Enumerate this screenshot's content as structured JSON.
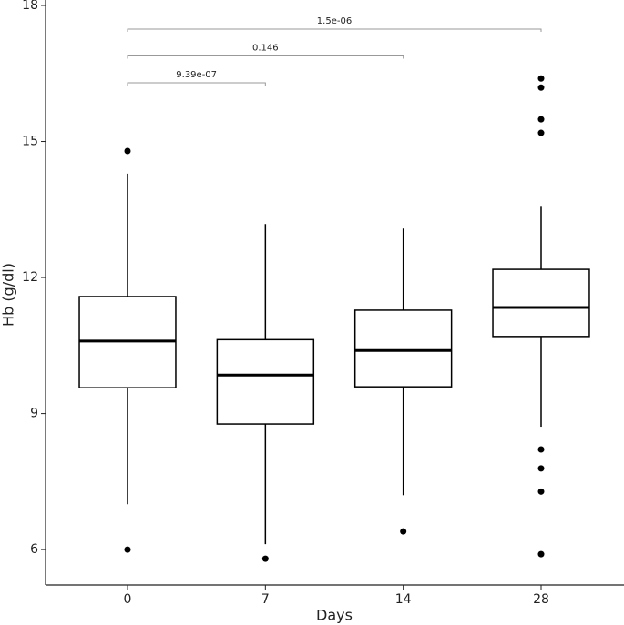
{
  "chart_data": {
    "type": "boxplot",
    "x_label": "Days",
    "y_label": "Hb (g/dl)",
    "categories": [
      "0",
      "7",
      "14",
      "28"
    ],
    "boxes": [
      {
        "whisker_low": 7.0,
        "q1": 9.57,
        "median": 10.6,
        "q3": 11.58,
        "whisker_high": 14.29,
        "outliers": [
          14.79,
          6.0
        ]
      },
      {
        "whisker_low": 6.12,
        "q1": 8.77,
        "median": 9.85,
        "q3": 10.63,
        "whisker_high": 13.18,
        "outliers": [
          5.8
        ]
      },
      {
        "whisker_low": 7.2,
        "q1": 9.59,
        "median": 10.39,
        "q3": 11.28,
        "whisker_high": 13.08,
        "outliers": [
          6.4
        ]
      },
      {
        "whisker_low": 8.71,
        "q1": 10.7,
        "median": 11.34,
        "q3": 12.18,
        "whisker_high": 13.58,
        "outliers": [
          16.39,
          16.19,
          15.49,
          15.19,
          8.21,
          7.79,
          7.28,
          5.9
        ]
      }
    ],
    "color": "#000000",
    "ylim": [
      5.22,
      18.02
    ],
    "yticks": [
      6,
      9,
      12,
      15,
      18
    ],
    "annotations": [
      {
        "label": "9.39e-07",
        "from": 0,
        "to": 1
      },
      {
        "label": "0.146",
        "from": 0,
        "to": 2
      },
      {
        "label": "1.5e-06",
        "from": 0,
        "to": 3
      }
    ]
  }
}
